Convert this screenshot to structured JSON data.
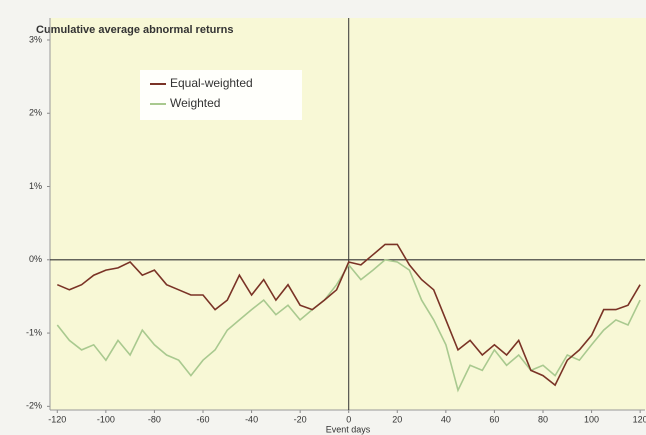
{
  "chart_data": {
    "type": "line",
    "title": "Cumulative average abnormal returns",
    "x_label": "Event days",
    "x": [
      -120,
      -115,
      -110,
      -105,
      -100,
      -95,
      -90,
      -85,
      -80,
      -75,
      -70,
      -65,
      -60,
      -55,
      -50,
      -45,
      -40,
      -35,
      -30,
      -25,
      -20,
      -15,
      -10,
      -5,
      0,
      5,
      10,
      15,
      20,
      25,
      30,
      35,
      40,
      45,
      50,
      55,
      60,
      65,
      70,
      75,
      80,
      85,
      90,
      95,
      100,
      105,
      110,
      115,
      120
    ],
    "series": [
      {
        "name": "Equal-weighted",
        "color": "#7a3326",
        "values": [
          -0.34,
          -0.41,
          -0.34,
          -0.21,
          -0.14,
          -0.11,
          -0.03,
          -0.21,
          -0.14,
          -0.34,
          -0.41,
          -0.48,
          -0.48,
          -0.68,
          -0.55,
          -0.21,
          -0.48,
          -0.27,
          -0.55,
          -0.34,
          -0.62,
          -0.68,
          -0.55,
          -0.41,
          -0.03,
          -0.07,
          0.07,
          0.21,
          0.21,
          -0.07,
          -0.27,
          -0.41,
          -0.82,
          -1.23,
          -1.1,
          -1.3,
          -1.16,
          -1.3,
          -1.1,
          -1.51,
          -1.58,
          -1.71,
          -1.37,
          -1.23,
          -1.03,
          -0.68,
          -0.68,
          -0.62,
          -0.34
        ]
      },
      {
        "name": "Weighted",
        "color": "#a9c98f",
        "values": [
          -0.89,
          -1.1,
          -1.23,
          -1.16,
          -1.37,
          -1.1,
          -1.3,
          -0.96,
          -1.16,
          -1.3,
          -1.37,
          -1.58,
          -1.37,
          -1.23,
          -0.96,
          -0.82,
          -0.68,
          -0.55,
          -0.75,
          -0.62,
          -0.82,
          -0.68,
          -0.55,
          -0.34,
          -0.07,
          -0.27,
          -0.14,
          0,
          -0.03,
          -0.14,
          -0.55,
          -0.82,
          -1.16,
          -1.78,
          -1.44,
          -1.51,
          -1.23,
          -1.44,
          -1.3,
          -1.51,
          -1.44,
          -1.58,
          -1.3,
          -1.37,
          -1.16,
          -0.96,
          -0.82,
          -0.89,
          -0.55
        ]
      }
    ],
    "xlim": [
      -123,
      122
    ],
    "xticks": [
      -120,
      -100,
      -80,
      -60,
      -40,
      -20,
      0,
      20,
      40,
      60,
      80,
      100,
      120
    ],
    "ylim": [
      -2.05,
      3.3
    ],
    "yticks": [
      {
        "value": -2,
        "label": "-2%"
      },
      {
        "value": -1,
        "label": "-1%"
      },
      {
        "value": 0,
        "label": "0%"
      },
      {
        "value": 1,
        "label": "1%"
      },
      {
        "value": 2,
        "label": "2%"
      },
      {
        "value": 3,
        "label": "3%"
      }
    ],
    "legend": "upper left"
  }
}
